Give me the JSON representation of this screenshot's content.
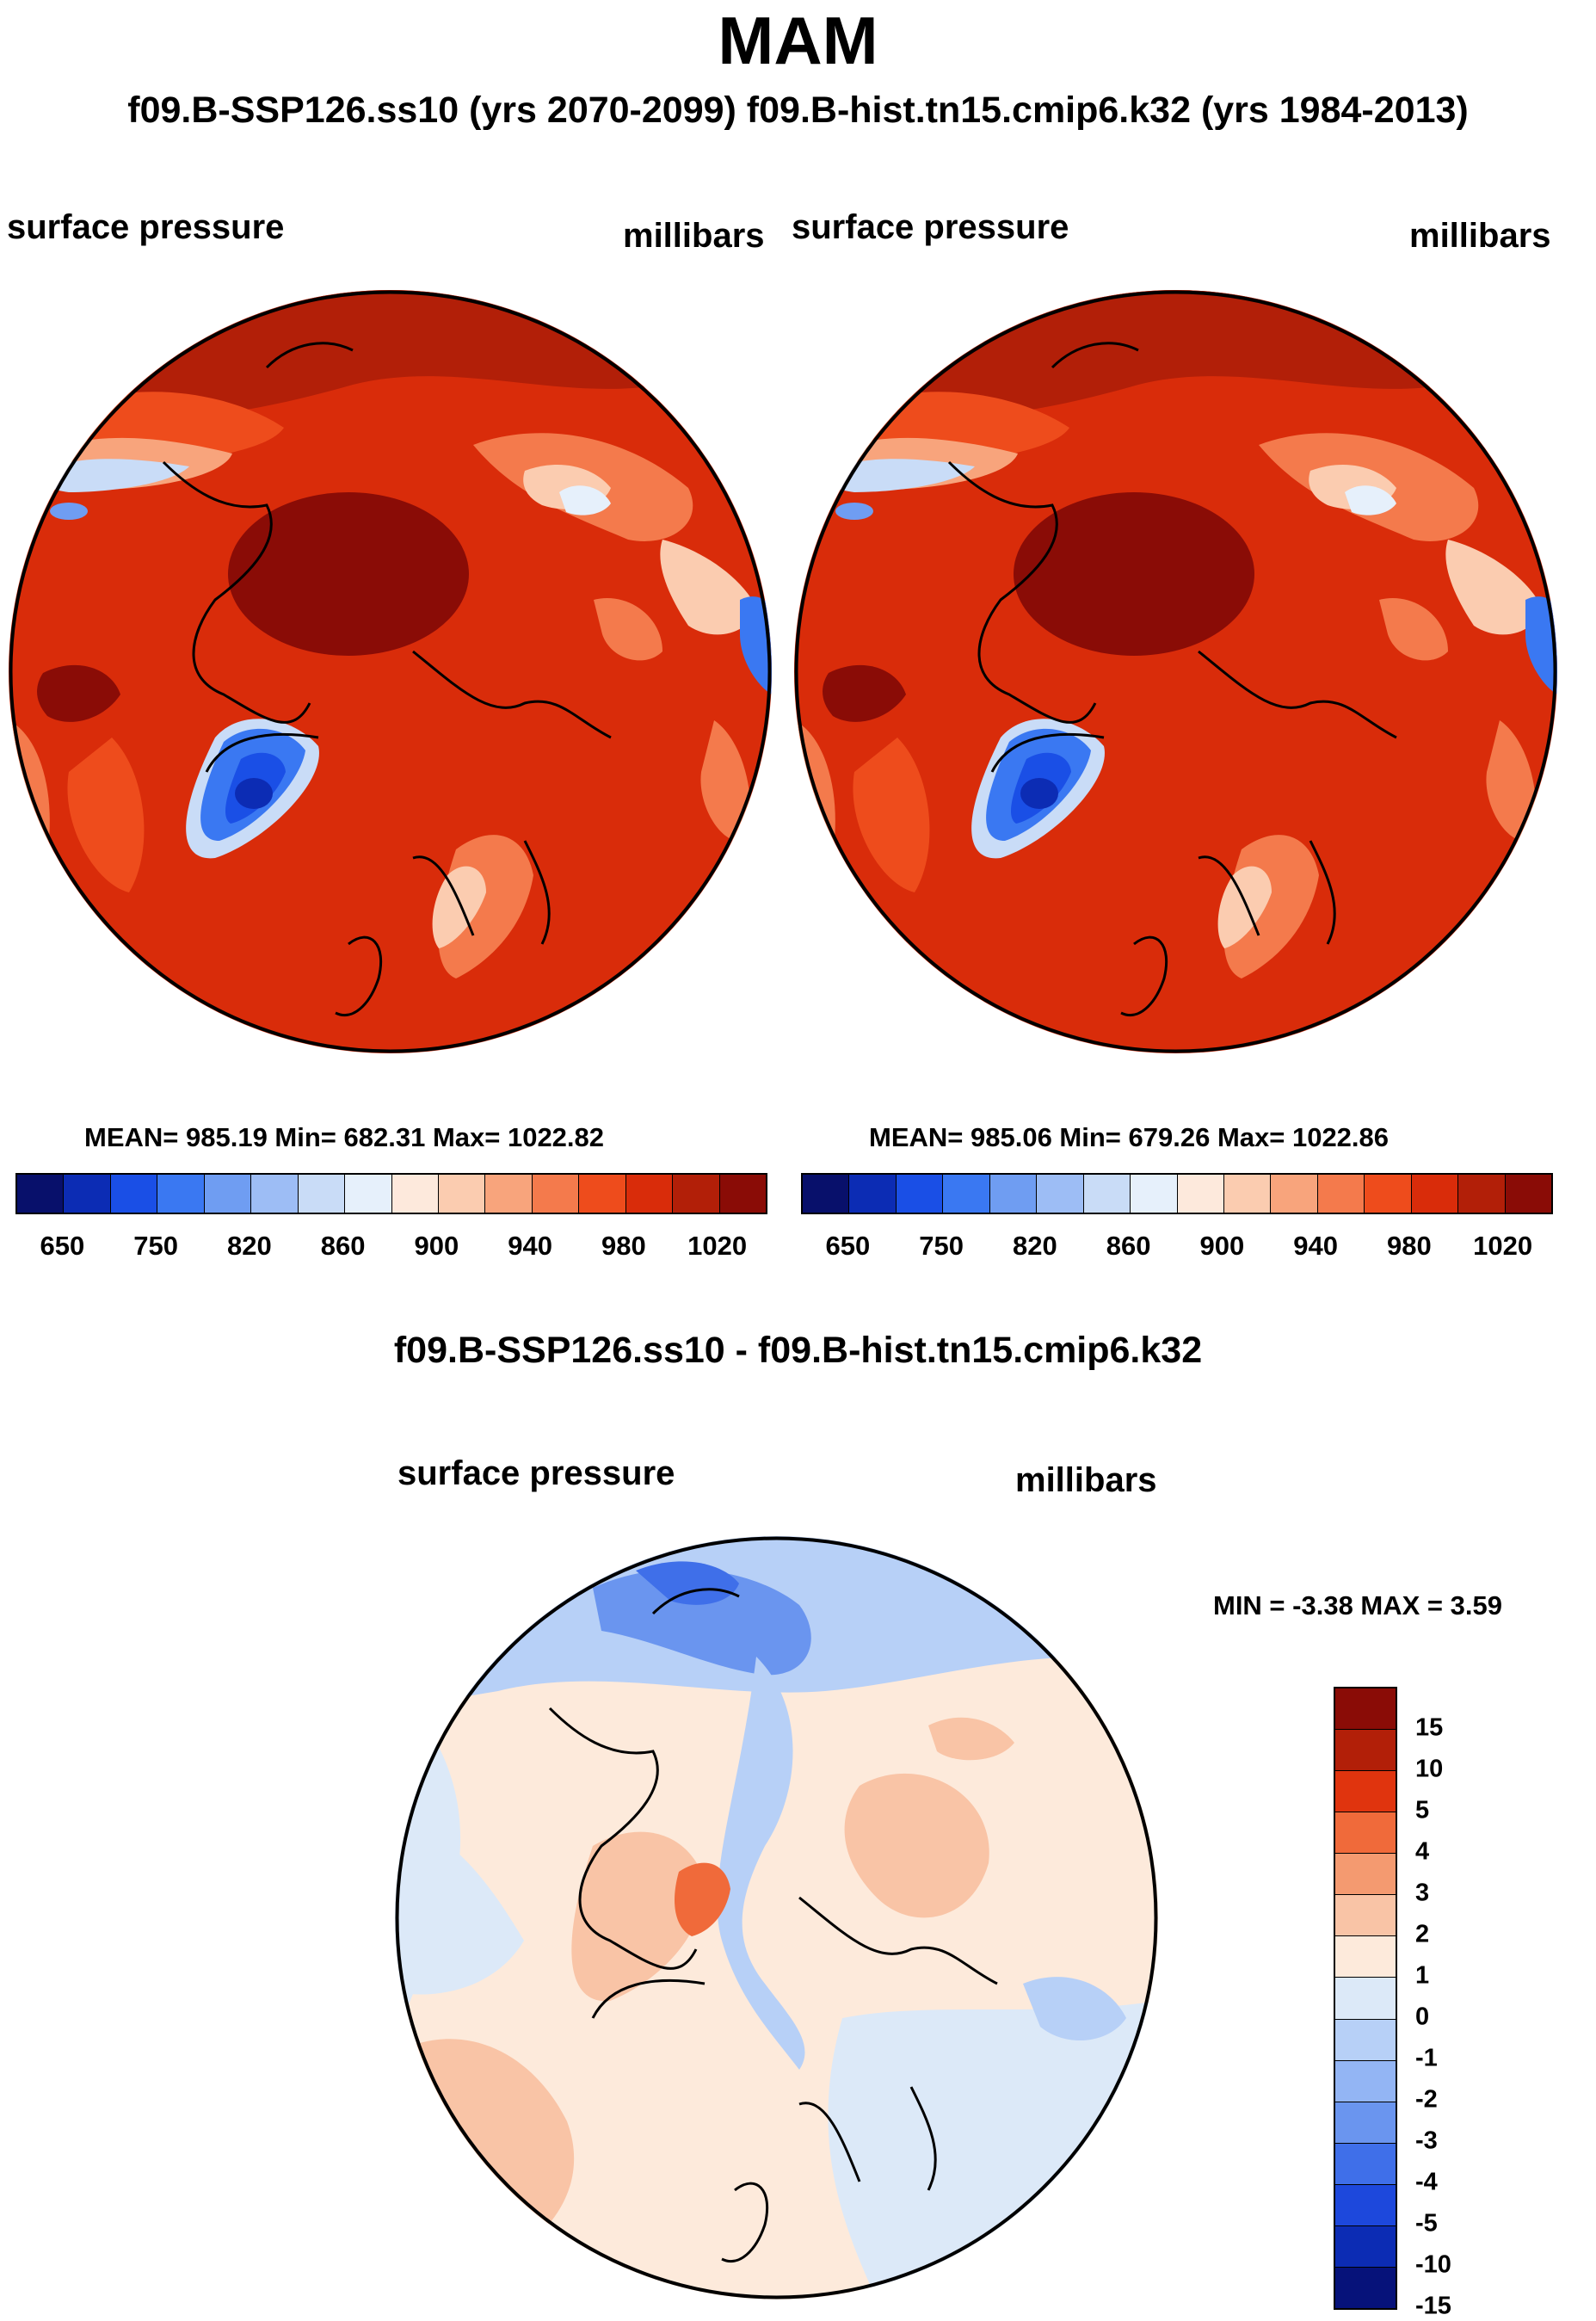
{
  "title": "MAM",
  "subtitle": "f09.B-SSP126.ss10 (yrs 2070-2099)  f09.B-hist.tn15.cmip6.k32 (yrs 1984-2013)",
  "panels": [
    {
      "variable": "surface pressure",
      "units": "millibars",
      "stats_text": "MEAN= 985.19  Min= 682.31  Max= 1022.82",
      "stats": {
        "mean": 985.19,
        "min": 682.31,
        "max": 1022.82
      }
    },
    {
      "variable": "surface pressure",
      "units": "millibars",
      "stats_text": "MEAN= 985.06  Min= 679.26  Max= 1022.86",
      "stats": {
        "mean": 985.06,
        "min": 679.26,
        "max": 1022.86
      }
    }
  ],
  "abs_colorbar": {
    "colors": [
      "#08106b",
      "#0c2cb4",
      "#1a4fe6",
      "#3a78f2",
      "#6f9df2",
      "#9dbdf5",
      "#c9dcf7",
      "#e6f0fb",
      "#fde9dc",
      "#fbccb0",
      "#f8a47c",
      "#f47a4c",
      "#ee4c1c",
      "#d92c0a",
      "#b21f08",
      "#8a0c06"
    ],
    "tick_labels": [
      "650",
      "750",
      "820",
      "860",
      "900",
      "940",
      "980",
      "1020"
    ]
  },
  "diff": {
    "title": "f09.B-SSP126.ss10 - f09.B-hist.tn15.cmip6.k32",
    "variable": "surface pressure",
    "units": "millibars",
    "min_max_text": "MIN =  -3.38 MAX =   3.59",
    "min": -3.38,
    "max": 3.59
  },
  "diff_colorbar": {
    "colors": [
      "#8a0c06",
      "#b21f08",
      "#e0340e",
      "#f06a3a",
      "#f49a70",
      "#f9c4a6",
      "#fdeadb",
      "#dce9f8",
      "#b7d0f7",
      "#93b5f4",
      "#6a95ef",
      "#3f6fe9",
      "#1d48dc",
      "#0c2cb4",
      "#06127a"
    ],
    "tick_labels": [
      "15",
      "10",
      "5",
      "4",
      "3",
      "2",
      "1",
      "0",
      "-1",
      "-2",
      "-3",
      "-4",
      "-5",
      "-10",
      "-15"
    ]
  }
}
